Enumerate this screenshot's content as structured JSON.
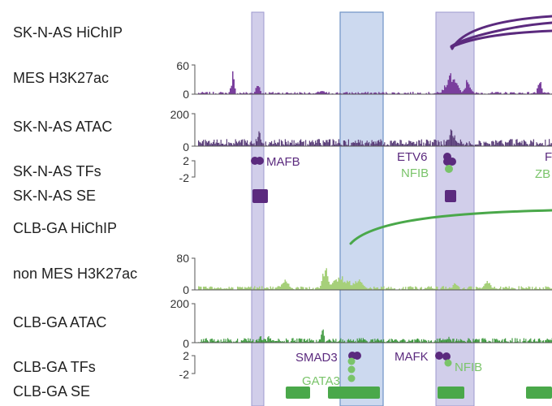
{
  "tracks": [
    {
      "label": "SK-N-AS HiChIP"
    },
    {
      "label": "MES H3K27ac",
      "ymax": "60",
      "ymin": "0"
    },
    {
      "label": "SK-N-AS ATAC",
      "ymax": "200",
      "ymin": "0"
    },
    {
      "label": "SK-N-AS TFs",
      "ymax": "2",
      "ymin": "-2"
    },
    {
      "label": "SK-N-AS SE"
    },
    {
      "label": "CLB-GA HiChIP"
    },
    {
      "label": "non MES H3K27ac",
      "ymax": "80",
      "ymin": "0"
    },
    {
      "label": "CLB-GA ATAC",
      "ymax": "200",
      "ymin": "0"
    },
    {
      "label": "CLB-GA TFs",
      "ymax": "2",
      "ymin": "-2"
    },
    {
      "label": "CLB-GA SE"
    }
  ],
  "tf_labels": {
    "sknas_mafb": "MAFB",
    "sknas_etv6": "ETV6",
    "sknas_nfib": "NFIB",
    "sknas_edge_top": "F",
    "sknas_edge_bottom": "ZB",
    "clbga_smad3": "SMAD3",
    "clbga_gata3": "GATA3",
    "clbga_mafk": "MAFK",
    "clbga_nfib": "NFIB"
  },
  "colors": {
    "mes_purple": "#5b2a7e",
    "mes_signal": "#7a3f9d",
    "clb_green": "#4aa84a",
    "clb_signal_light": "#a6d07a",
    "highlight_purple": "#b9b6dd",
    "highlight_blue": "#a9bfe0"
  }
}
